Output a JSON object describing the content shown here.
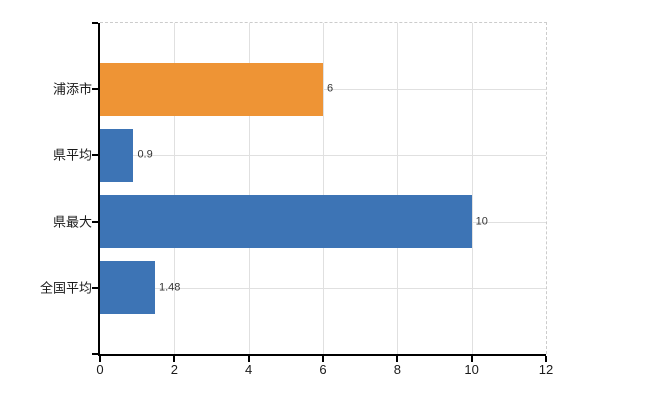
{
  "chart_data": {
    "type": "bar",
    "orientation": "horizontal",
    "title": "",
    "xlabel": "",
    "ylabel": "",
    "categories": [
      "浦添市",
      "県平均",
      "県最大",
      "全国平均"
    ],
    "values": [
      6,
      0.9,
      10,
      1.48
    ],
    "value_labels": [
      "6",
      "0.9",
      "10",
      "1.48"
    ],
    "bar_colors": [
      "#ee9435",
      "#3d74b5",
      "#3d74b5",
      "#3d74b5"
    ],
    "xlim": [
      0,
      12
    ],
    "x_ticks": [
      0,
      2,
      4,
      6,
      8,
      10,
      12
    ],
    "grid": "on",
    "legend_position": "none"
  },
  "colors": {
    "bar_orange": "#ee9435",
    "bar_blue": "#3d74b5",
    "gridline": "#e0e0e0",
    "axis": "#000000",
    "dashed_border": "#cccccc",
    "category_text": "#1a1a1a",
    "value_text": "#333333",
    "background": "#ffffff"
  }
}
